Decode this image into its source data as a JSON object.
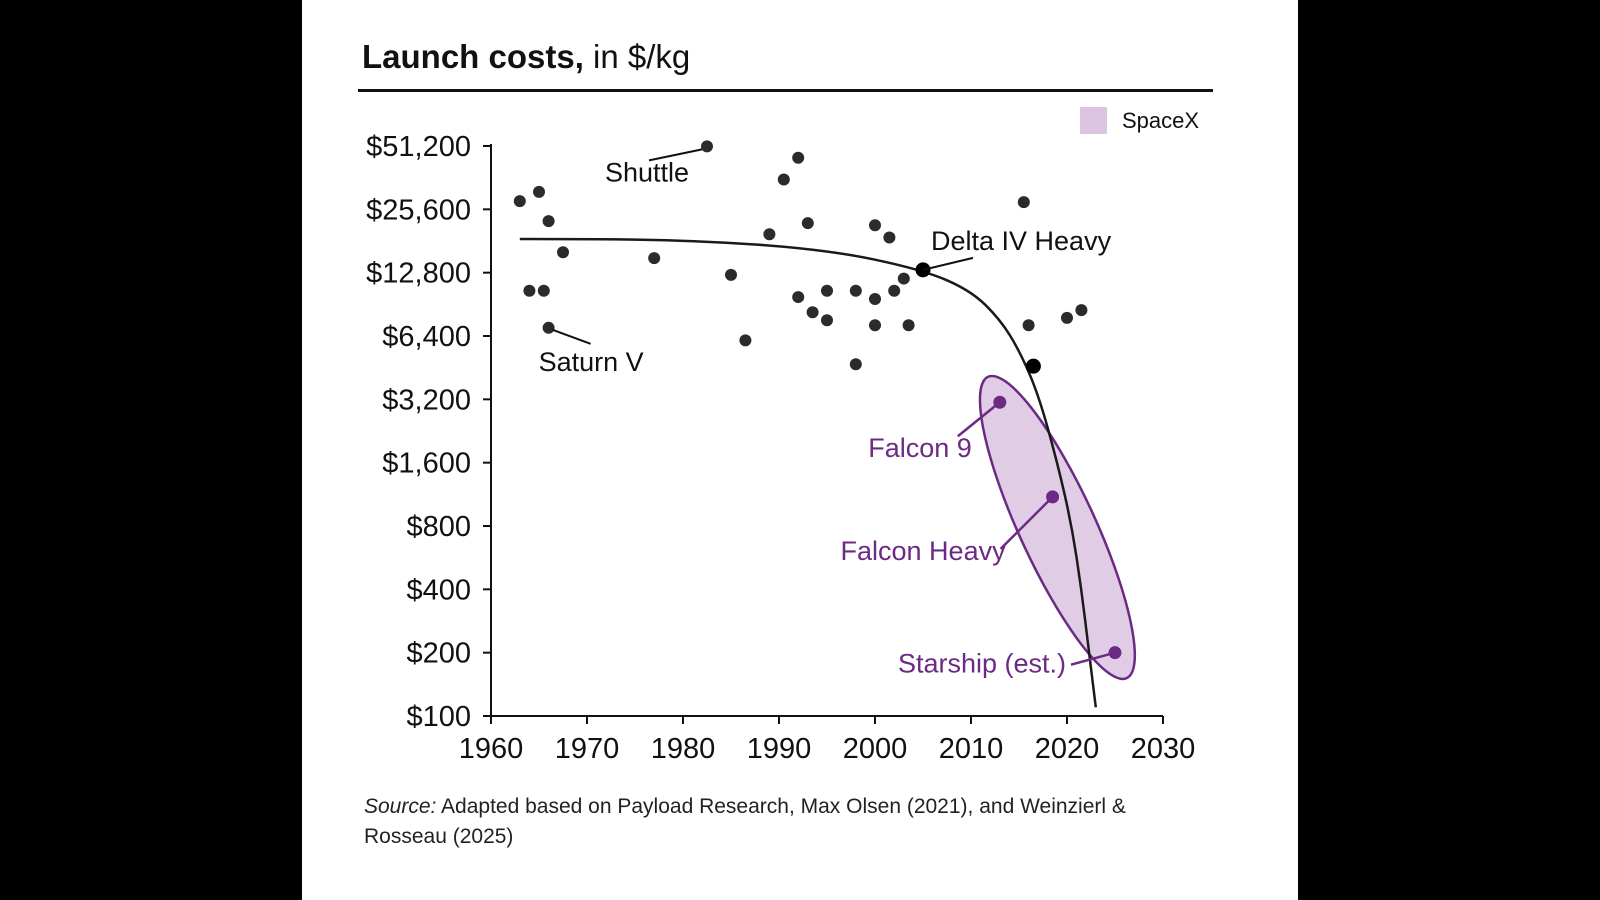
{
  "title": {
    "bold": "Launch costs,",
    "regular": " in $/kg"
  },
  "source": {
    "label": "Source:",
    "text": " Adapted based on Payload Research, Max Olsen (2021), and Weinzierl & Rosseau (2025)"
  },
  "colors": {
    "background": "#000000",
    "panel": "#ffffff",
    "points": "#2b2b2b",
    "spacex": "#6b2a84",
    "spacex_fill": "#dcc3e1",
    "trend": "#1a1a1a"
  },
  "chart_data": {
    "type": "scatter",
    "xlim": [
      1960,
      2030
    ],
    "ylim": [
      100,
      51200
    ],
    "yscale": "log2",
    "xticks": [
      1960,
      1970,
      1980,
      1990,
      2000,
      2010,
      2020,
      2030
    ],
    "xtick_labels": [
      "1960",
      "1970",
      "1980",
      "1990",
      "2000",
      "2010",
      "2020",
      "2030"
    ],
    "yticks": [
      100,
      200,
      400,
      800,
      1600,
      3200,
      6400,
      12800,
      25600,
      51200
    ],
    "ytick_labels": [
      "$100",
      "$200",
      "$400",
      "$800",
      "$1,600",
      "$3,200",
      "$6,400",
      "$12,800",
      "$25,600",
      "$51,200"
    ],
    "grid": false,
    "legend": {
      "position": "top-right",
      "entries": [
        "SpaceX"
      ]
    },
    "series": [
      {
        "points": [
          [
            1963,
            28000
          ],
          [
            1965,
            31000
          ],
          [
            1966,
            22500
          ],
          [
            1967.5,
            16000
          ],
          [
            1964,
            10500
          ],
          [
            1965.5,
            10500
          ],
          [
            1966,
            7000
          ],
          [
            1977,
            15000
          ],
          [
            1982.5,
            51000
          ],
          [
            1985,
            12500
          ],
          [
            1986.5,
            6100
          ],
          [
            1989,
            19500
          ],
          [
            1990.5,
            35500
          ],
          [
            1992,
            45000
          ],
          [
            1993,
            22000
          ],
          [
            1992,
            9800
          ],
          [
            1993.5,
            8300
          ],
          [
            1995,
            10500
          ],
          [
            1995,
            7600
          ],
          [
            1998,
            10500
          ],
          [
            1998,
            4700
          ],
          [
            2000,
            21500
          ],
          [
            2001.5,
            18800
          ],
          [
            2000,
            9600
          ],
          [
            2000,
            7200
          ],
          [
            2002,
            10500
          ],
          [
            2003,
            12000
          ],
          [
            2003.5,
            7200
          ],
          [
            2015.5,
            27700
          ],
          [
            2016,
            7200
          ],
          [
            2020,
            7800
          ],
          [
            2021.5,
            8500
          ]
        ]
      },
      {
        "points": [
          [
            2005,
            13200
          ],
          [
            2016.5,
            4600
          ]
        ]
      },
      {
        "name": "SpaceX",
        "points": [
          {
            "label": "Falcon 9",
            "x": 2013,
            "y": 3100
          },
          {
            "label": "Falcon Heavy",
            "x": 2018.5,
            "y": 1100
          },
          {
            "label": "Starship (est.)",
            "x": 2025,
            "y": 200
          }
        ]
      }
    ],
    "trend_line": {
      "points": [
        [
          1963,
          18500
        ],
        [
          1980,
          18400
        ],
        [
          1995,
          16500
        ],
        [
          2005,
          13200
        ],
        [
          2010,
          10500
        ],
        [
          2013,
          7700
        ],
        [
          2015,
          5500
        ],
        [
          2017,
          3400
        ],
        [
          2019,
          1600
        ],
        [
          2020.5,
          800
        ],
        [
          2021.5,
          400
        ],
        [
          2022.3,
          200
        ],
        [
          2023,
          110
        ]
      ]
    },
    "annotations": [
      {
        "text": "Shuttle",
        "x": 1982.5,
        "y": 51000
      },
      {
        "text": "Saturn V",
        "x": 1966,
        "y": 7000
      },
      {
        "text": "Delta IV Heavy",
        "x": 2005,
        "y": 13200
      }
    ]
  }
}
